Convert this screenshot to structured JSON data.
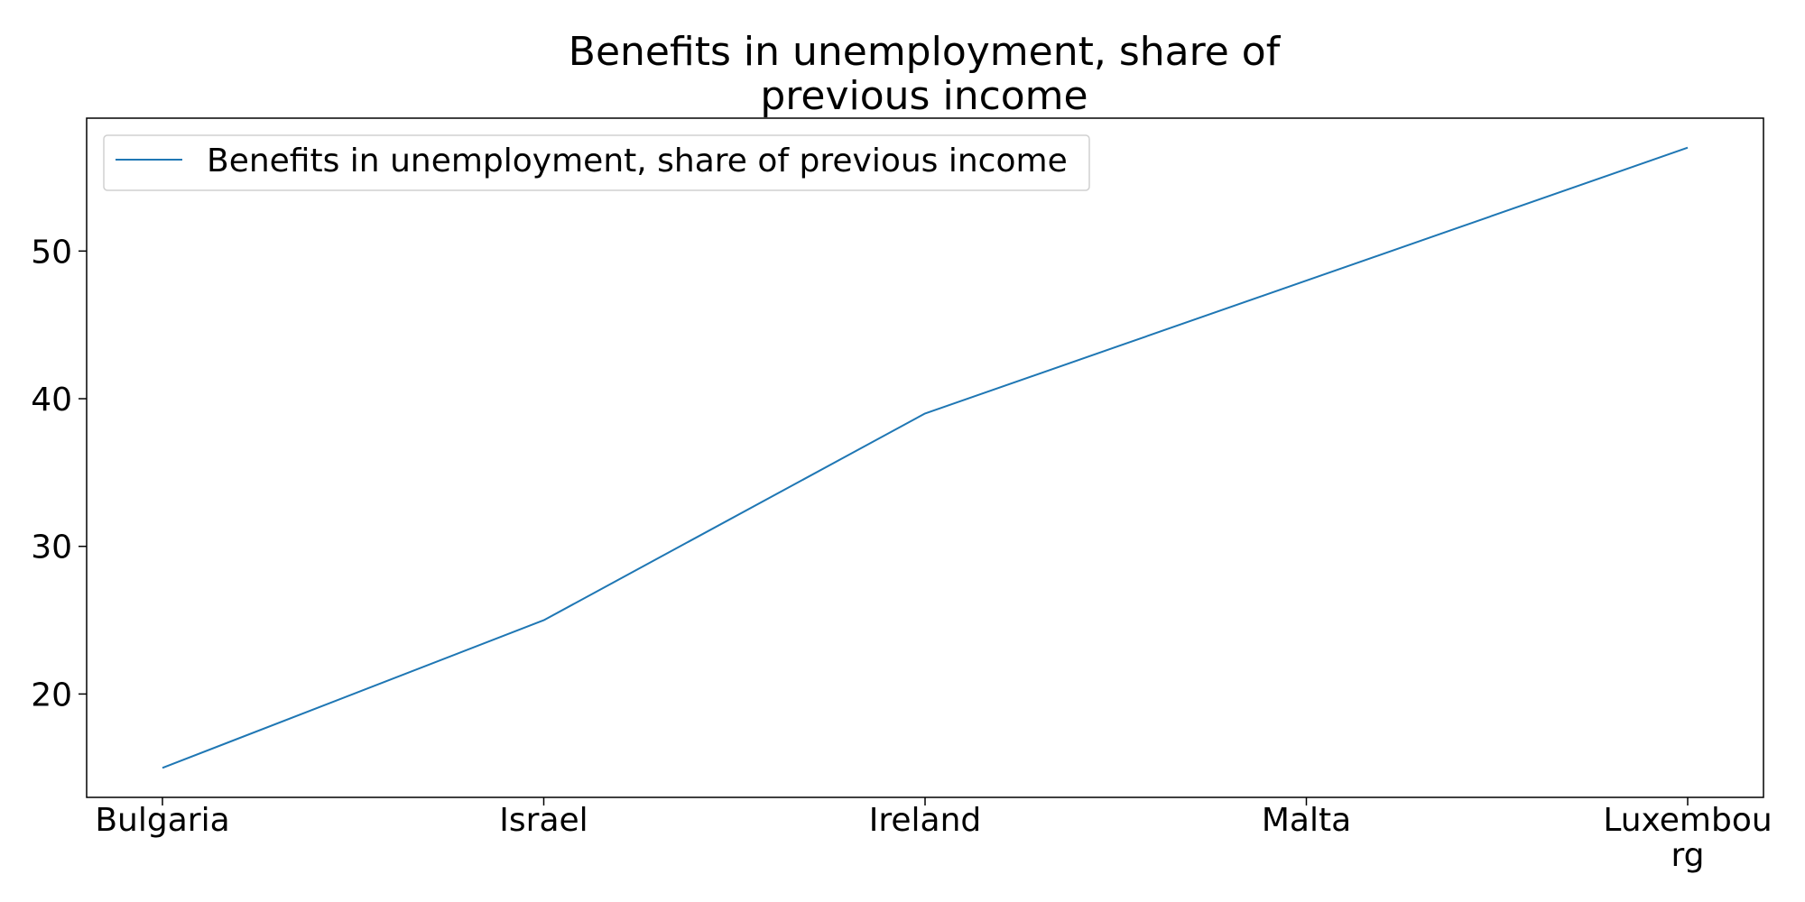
{
  "chart_data": {
    "type": "line",
    "title_lines": [
      "Benefits in unemployment, share of",
      "previous income"
    ],
    "categories": [
      "Bulgaria",
      "Israel",
      "Ireland",
      "Malta",
      "Luxembourg"
    ],
    "category_label_lines": [
      [
        "Bulgaria"
      ],
      [
        "Israel"
      ],
      [
        "Ireland"
      ],
      [
        "Malta"
      ],
      [
        "Luxembou",
        "rg"
      ]
    ],
    "series": [
      {
        "name": "Benefits in unemployment, share of previous income",
        "values": [
          15,
          25,
          39,
          48,
          57
        ],
        "color": "#1f77b4"
      }
    ],
    "xlabel": "",
    "ylabel": "",
    "ylim": [
      13,
      59
    ],
    "yticks": [
      20,
      30,
      40,
      50
    ],
    "grid": false,
    "legend_position": "top-left"
  }
}
